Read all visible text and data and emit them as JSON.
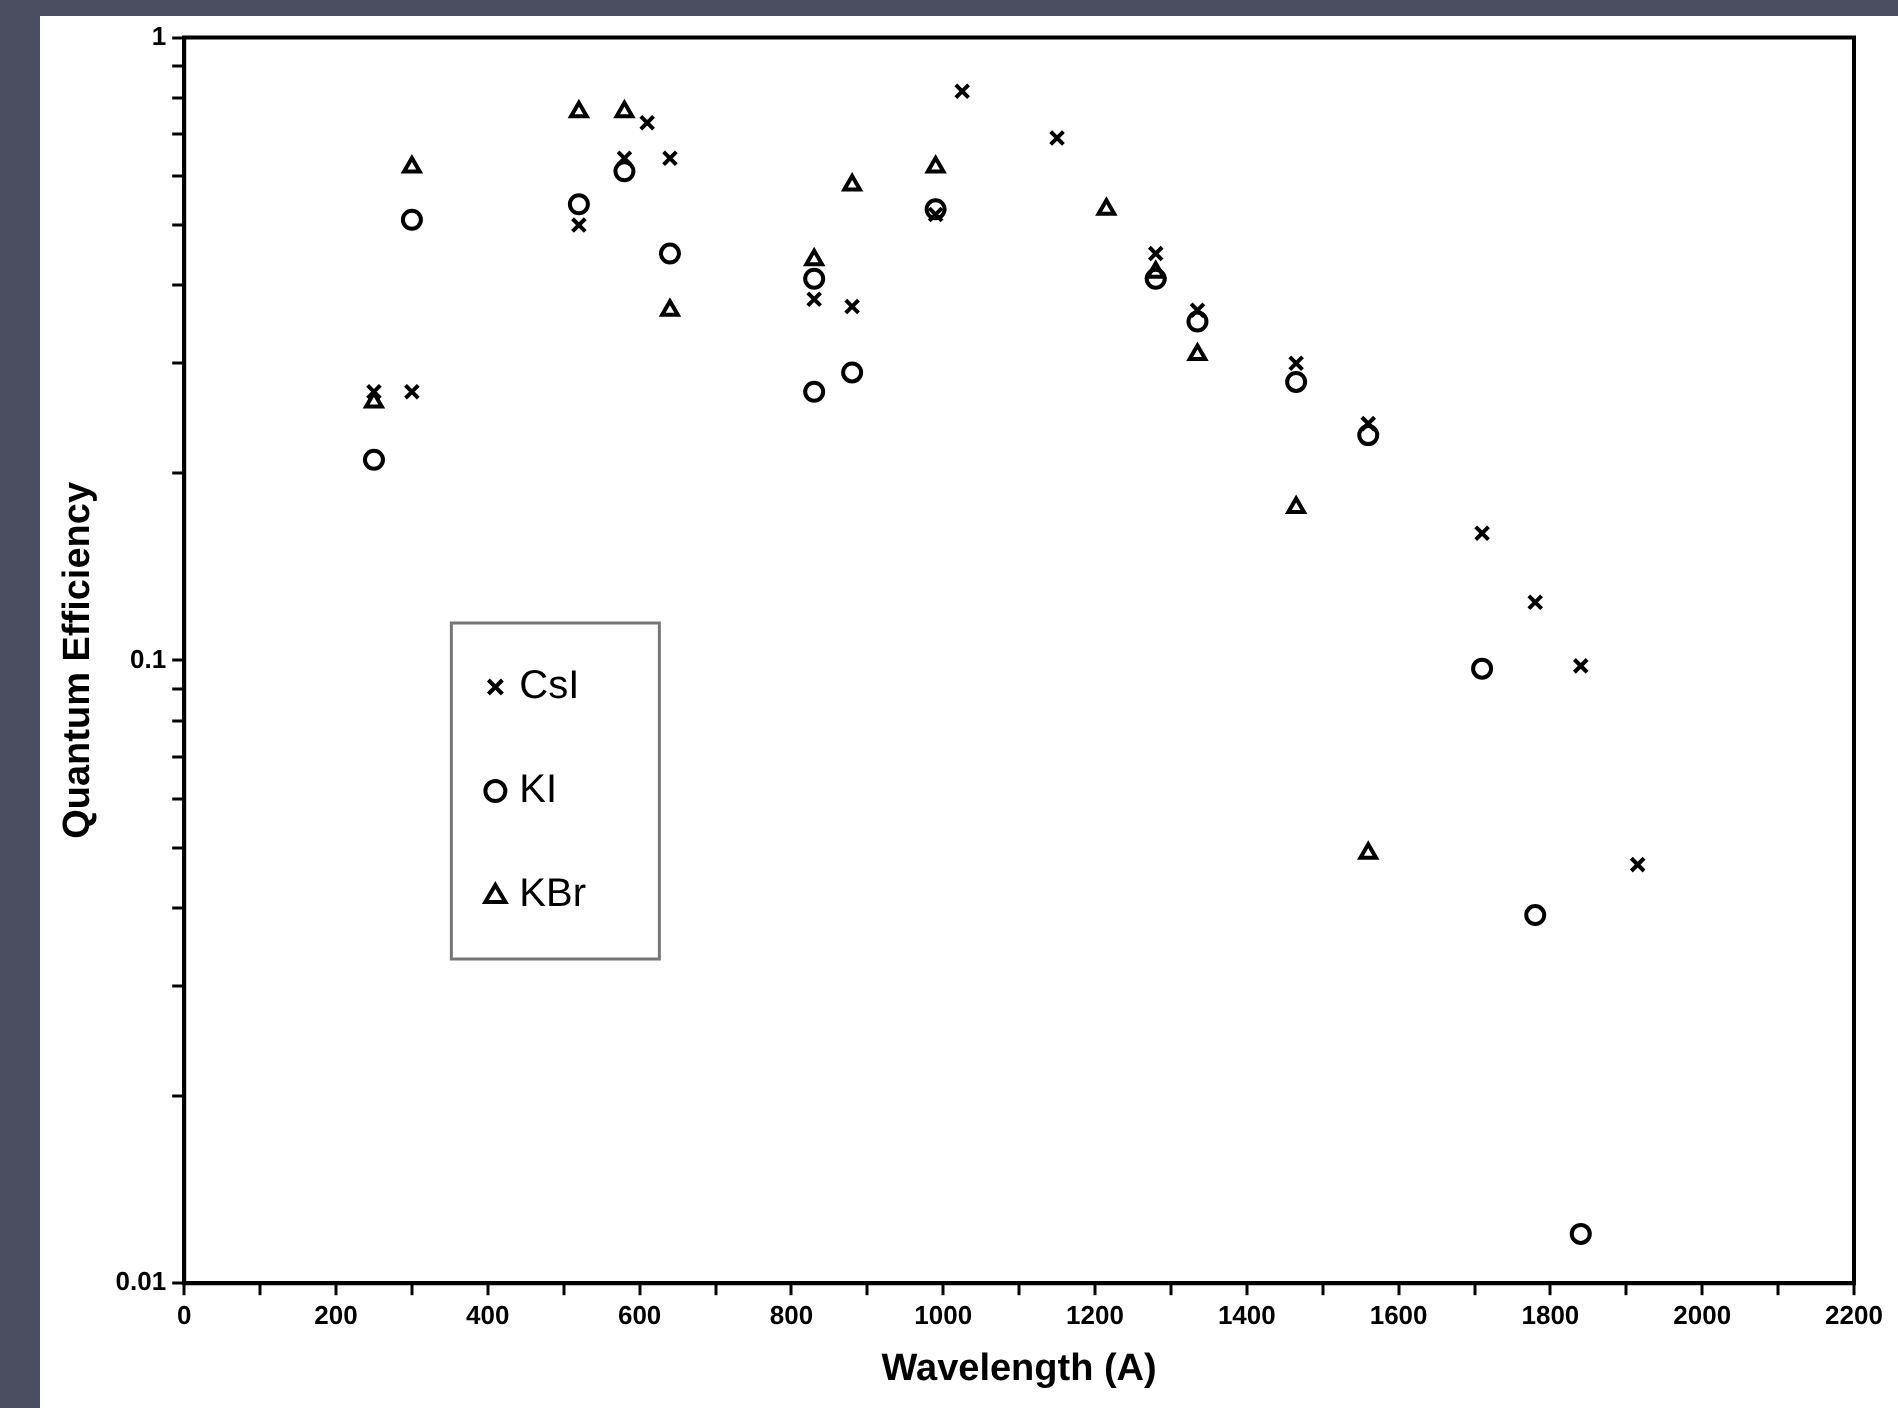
{
  "chart_data": {
    "type": "scatter",
    "xlabel": "Wavelength (A)",
    "ylabel": "Quantum Efficiency",
    "log": "y",
    "grid": false,
    "legend": "left",
    "xlim": [
      0,
      2200
    ],
    "xticks": [
      0,
      {
        "value": 100,
        "label": null
      },
      200,
      {
        "value": 300,
        "label": null
      },
      400,
      {
        "value": 500,
        "label": null
      },
      600,
      {
        "value": 700,
        "label": null
      },
      800,
      {
        "value": 900,
        "label": null
      },
      1000,
      {
        "value": 1100,
        "label": null
      },
      1200,
      {
        "value": 1300,
        "label": null
      },
      1400,
      {
        "value": 1500,
        "label": null
      },
      1600,
      {
        "value": 1700,
        "label": null
      },
      1800,
      {
        "value": 1900,
        "label": null
      },
      2000,
      {
        "value": 2100,
        "label": null
      },
      2200
    ],
    "ylim": [
      0.01,
      1
    ],
    "yticks": [
      0.01,
      {
        "value": 0.02,
        "label": null
      },
      {
        "value": 0.03,
        "label": null
      },
      {
        "value": 0.04,
        "label": null
      },
      {
        "value": 0.05,
        "label": null
      },
      {
        "value": 0.06,
        "label": null
      },
      {
        "value": 0.07,
        "label": null
      },
      {
        "value": 0.08,
        "label": null
      },
      {
        "value": 0.09,
        "label": null
      },
      0.1,
      {
        "value": 0.2,
        "label": null
      },
      {
        "value": 0.3,
        "label": null
      },
      {
        "value": 0.4,
        "label": null
      },
      {
        "value": 0.5,
        "label": null
      },
      {
        "value": 0.6,
        "label": null
      },
      {
        "value": 0.7,
        "label": null
      },
      {
        "value": 0.8,
        "label": null
      },
      {
        "value": 0.9,
        "label": null
      },
      1
    ],
    "series": [
      {
        "name": "CsI",
        "color": "#000000",
        "marker": "cross",
        "x": [
          250,
          300,
          520,
          580,
          610,
          640,
          830,
          880,
          990,
          1025,
          1150,
          1215,
          1280,
          1335,
          1465,
          1560,
          1710,
          1780,
          1840,
          1915
        ],
        "values": [
          0.27,
          0.27,
          0.5,
          0.64,
          0.73,
          0.64,
          0.38,
          0.37,
          0.52,
          0.82,
          0.69,
          null,
          0.45,
          0.365,
          0.3,
          0.24,
          0.16,
          0.124,
          0.098,
          0.047
        ]
      },
      {
        "name": "KI",
        "color": "#000000",
        "marker": "circle",
        "x": [
          250,
          300,
          520,
          580,
          640,
          830,
          830,
          880,
          990,
          1150,
          1215,
          1280,
          1335,
          1465,
          1560,
          1710,
          1780,
          1840
        ],
        "values": [
          0.21,
          0.51,
          0.54,
          0.61,
          0.45,
          0.41,
          0.27,
          0.29,
          0.53,
          null,
          null,
          0.41,
          0.35,
          0.28,
          0.23,
          0.097,
          0.039,
          0.012
        ]
      },
      {
        "name": "KBr",
        "color": "#000000",
        "marker": "triangle",
        "x": [
          250,
          300,
          520,
          580,
          640,
          830,
          880,
          990,
          1150,
          1215,
          1280,
          1335,
          1465,
          1560
        ],
        "values": [
          0.26,
          0.62,
          0.76,
          0.76,
          0.365,
          0.44,
          0.58,
          0.62,
          null,
          0.53,
          0.42,
          0.31,
          0.176,
          0.049
        ]
      }
    ]
  }
}
